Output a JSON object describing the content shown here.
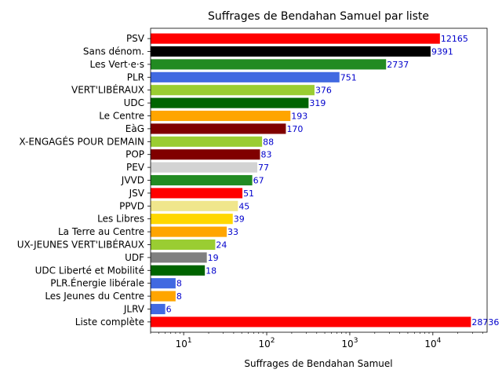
{
  "chart_data": {
    "type": "bar",
    "orientation": "horizontal",
    "title": "Suffrages de Bendahan Samuel par liste",
    "xlabel": "Suffrages de Bendahan Samuel",
    "ylabel": "",
    "x_scale": "log",
    "xlim": [
      4,
      45000
    ],
    "x_ticks": [
      {
        "value": 10,
        "base": "10",
        "exp": "1"
      },
      {
        "value": 100,
        "base": "10",
        "exp": "2"
      },
      {
        "value": 1000,
        "base": "10",
        "exp": "3"
      },
      {
        "value": 10000,
        "base": "10",
        "exp": "4"
      }
    ],
    "grid": false,
    "categories": [
      "PSV",
      "Sans dénom.",
      "Les Vert·e·s",
      "PLR",
      "VERT'LIBÉRAUX",
      "UDC",
      "Le Centre",
      "EàG",
      "X-ENGAGÉS POUR DEMAIN",
      "POP",
      "PEV",
      "JVVD",
      "JSV",
      "PPVD",
      "Les Libres",
      "La Terre au Centre",
      "UX-JEUNES VERT'LIBÉRAUX",
      "UDF",
      "UDC Liberté et Mobilité",
      "PLR.Énergie libérale",
      "Les Jeunes du Centre",
      "JLRV",
      "Liste complète"
    ],
    "values": [
      12165,
      9391,
      2737,
      751,
      376,
      319,
      193,
      170,
      88,
      83,
      77,
      67,
      51,
      45,
      39,
      33,
      24,
      19,
      18,
      8,
      8,
      6,
      28736
    ],
    "value_labels": [
      "12165",
      "9391",
      "2737",
      "751",
      "376",
      "319",
      "193",
      "170",
      "88",
      "83",
      "77",
      "67",
      "51",
      "45",
      "39",
      "33",
      "24",
      "19",
      "18",
      "8",
      "8",
      "6",
      "28736"
    ],
    "colors": [
      "#ff0000",
      "#000000",
      "#228b22",
      "#4169e1",
      "#9acd32",
      "#006400",
      "#ffa500",
      "#800000",
      "#9acd32",
      "#800000",
      "#d3d3d3",
      "#228b22",
      "#ff0000",
      "#f0e68c",
      "#ffd700",
      "#ffa500",
      "#9acd32",
      "#808080",
      "#006400",
      "#4169e1",
      "#ffa500",
      "#4169e1",
      "#ff0000"
    ]
  }
}
